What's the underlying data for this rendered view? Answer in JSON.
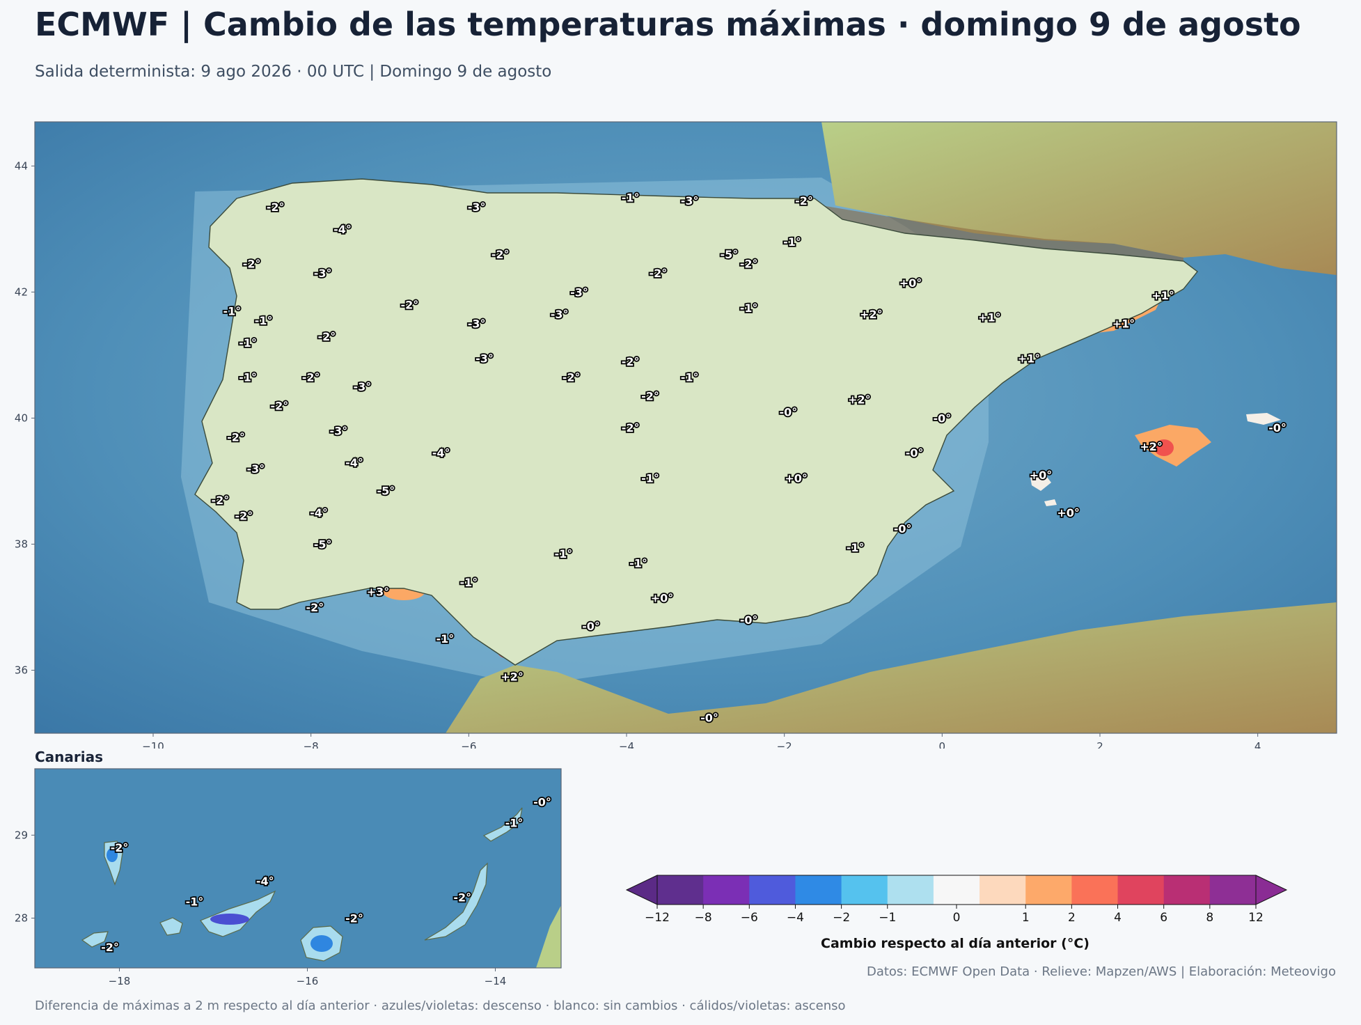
{
  "header": {
    "title": "ECMWF | Cambio de las temperaturas máximas · domingo 9 de agosto",
    "subtitle": "Salida determinista: 9 ago 2026 · 00 UTC  |  Domingo 9 de agosto"
  },
  "main_map": {
    "x_ticks": [
      "−10",
      "−8",
      "−6",
      "−4",
      "−2",
      "0",
      "2",
      "4"
    ],
    "y_ticks": [
      "44",
      "42",
      "40",
      "38",
      "36"
    ],
    "labels": [
      {
        "text": "-2°",
        "lon": -8.45,
        "lat": 43.35
      },
      {
        "text": "-4°",
        "lon": -7.6,
        "lat": 43.0
      },
      {
        "text": "-3°",
        "lon": -5.9,
        "lat": 43.35
      },
      {
        "text": "-1°",
        "lon": -3.95,
        "lat": 43.5
      },
      {
        "text": "-3°",
        "lon": -3.2,
        "lat": 43.45
      },
      {
        "text": "-2°",
        "lon": -1.75,
        "lat": 43.45
      },
      {
        "text": "-1°",
        "lon": -1.9,
        "lat": 42.8
      },
      {
        "text": "-5°",
        "lon": -2.7,
        "lat": 42.6
      },
      {
        "text": "-2°",
        "lon": -2.45,
        "lat": 42.45
      },
      {
        "text": "-2°",
        "lon": -5.6,
        "lat": 42.6
      },
      {
        "text": "-2°",
        "lon": -8.75,
        "lat": 42.45
      },
      {
        "text": "-3°",
        "lon": -7.85,
        "lat": 42.3
      },
      {
        "text": "-2°",
        "lon": -3.6,
        "lat": 42.3
      },
      {
        "text": "-3°",
        "lon": -4.6,
        "lat": 42.0
      },
      {
        "text": "-2°",
        "lon": -6.75,
        "lat": 41.8
      },
      {
        "text": "-3°",
        "lon": -4.85,
        "lat": 41.65
      },
      {
        "text": "-3°",
        "lon": -5.9,
        "lat": 41.5
      },
      {
        "text": "-1°",
        "lon": -2.45,
        "lat": 41.75
      },
      {
        "text": "+0°",
        "lon": -0.4,
        "lat": 42.15
      },
      {
        "text": "+2°",
        "lon": -0.9,
        "lat": 41.65
      },
      {
        "text": "+1°",
        "lon": 0.6,
        "lat": 41.6
      },
      {
        "text": "+1°",
        "lon": 2.8,
        "lat": 41.95
      },
      {
        "text": "+1°",
        "lon": 2.3,
        "lat": 41.5
      },
      {
        "text": "+1°",
        "lon": 1.1,
        "lat": 40.95
      },
      {
        "text": "-1°",
        "lon": -9.0,
        "lat": 41.7
      },
      {
        "text": "-1°",
        "lon": -8.6,
        "lat": 41.55
      },
      {
        "text": "-2°",
        "lon": -7.8,
        "lat": 41.3
      },
      {
        "text": "-1°",
        "lon": -8.8,
        "lat": 41.2
      },
      {
        "text": "-3°",
        "lon": -5.8,
        "lat": 40.95
      },
      {
        "text": "-2°",
        "lon": -3.95,
        "lat": 40.9
      },
      {
        "text": "-1°",
        "lon": -8.8,
        "lat": 40.65
      },
      {
        "text": "-2°",
        "lon": -8.0,
        "lat": 40.65
      },
      {
        "text": "-3°",
        "lon": -7.35,
        "lat": 40.5
      },
      {
        "text": "-2°",
        "lon": -4.7,
        "lat": 40.65
      },
      {
        "text": "-1°",
        "lon": -3.2,
        "lat": 40.65
      },
      {
        "text": "-2°",
        "lon": -3.7,
        "lat": 40.35
      },
      {
        "text": "+2°",
        "lon": -1.05,
        "lat": 40.3
      },
      {
        "text": "-2°",
        "lon": -8.4,
        "lat": 40.2
      },
      {
        "text": "-0°",
        "lon": -1.95,
        "lat": 40.1
      },
      {
        "text": "-0°",
        "lon": 0.0,
        "lat": 40.0
      },
      {
        "text": "-3°",
        "lon": -7.65,
        "lat": 39.8
      },
      {
        "text": "-2°",
        "lon": -3.95,
        "lat": 39.85
      },
      {
        "text": "-2°",
        "lon": -8.95,
        "lat": 39.7
      },
      {
        "text": "-4°",
        "lon": -6.35,
        "lat": 39.45
      },
      {
        "text": "-0°",
        "lon": -0.35,
        "lat": 39.45
      },
      {
        "text": "-4°",
        "lon": -7.45,
        "lat": 39.3
      },
      {
        "text": "-3°",
        "lon": -8.7,
        "lat": 39.2
      },
      {
        "text": "+2°",
        "lon": 2.65,
        "lat": 39.55
      },
      {
        "text": "-0°",
        "lon": 4.25,
        "lat": 39.85
      },
      {
        "text": "-1°",
        "lon": -3.7,
        "lat": 39.05
      },
      {
        "text": "+0°",
        "lon": -1.85,
        "lat": 39.05
      },
      {
        "text": "+0°",
        "lon": 1.25,
        "lat": 39.1
      },
      {
        "text": "-5°",
        "lon": -7.05,
        "lat": 38.85
      },
      {
        "text": "-2°",
        "lon": -9.15,
        "lat": 38.7
      },
      {
        "text": "-4°",
        "lon": -7.9,
        "lat": 38.5
      },
      {
        "text": "-2°",
        "lon": -8.85,
        "lat": 38.45
      },
      {
        "text": "+0°",
        "lon": 1.6,
        "lat": 38.5
      },
      {
        "text": "-0°",
        "lon": -0.5,
        "lat": 38.25
      },
      {
        "text": "-5°",
        "lon": -7.85,
        "lat": 38.0
      },
      {
        "text": "-1°",
        "lon": -4.8,
        "lat": 37.85
      },
      {
        "text": "-1°",
        "lon": -3.85,
        "lat": 37.7
      },
      {
        "text": "-1°",
        "lon": -1.1,
        "lat": 37.95
      },
      {
        "text": "-1°",
        "lon": -6.0,
        "lat": 37.4
      },
      {
        "text": "+3°",
        "lon": -7.15,
        "lat": 37.25
      },
      {
        "text": "+0°",
        "lon": -3.55,
        "lat": 37.15
      },
      {
        "text": "-2°",
        "lon": -7.95,
        "lat": 37.0
      },
      {
        "text": "-0°",
        "lon": -4.45,
        "lat": 36.7
      },
      {
        "text": "-0°",
        "lon": -2.45,
        "lat": 36.8
      },
      {
        "text": "-1°",
        "lon": -6.3,
        "lat": 36.5
      },
      {
        "text": "+2°",
        "lon": -5.45,
        "lat": 35.9
      },
      {
        "text": "-0°",
        "lon": -2.95,
        "lat": 35.25
      }
    ]
  },
  "inset": {
    "title": "Canarias",
    "x_ticks": [
      "−18",
      "−16",
      "−14"
    ],
    "y_ticks": [
      "29",
      "28"
    ],
    "labels": [
      {
        "text": "-2°",
        "lon": -18.0,
        "lat": 28.85
      },
      {
        "text": "-1°",
        "lon": -17.2,
        "lat": 28.2
      },
      {
        "text": "-4°",
        "lon": -16.45,
        "lat": 28.45
      },
      {
        "text": "-2°",
        "lon": -15.5,
        "lat": 28.0
      },
      {
        "text": "-2°",
        "lon": -14.35,
        "lat": 28.25
      },
      {
        "text": "-1°",
        "lon": -13.8,
        "lat": 29.15
      },
      {
        "text": "-0°",
        "lon": -13.5,
        "lat": 29.4
      },
      {
        "text": "-2°",
        "lon": -18.1,
        "lat": 27.65
      }
    ]
  },
  "colorbar": {
    "title": "Cambio respecto al día anterior (°C)",
    "ticks": [
      "−12",
      "−8",
      "−6",
      "−4",
      "−2",
      "−1",
      "0",
      "1",
      "2",
      "4",
      "6",
      "8",
      "12"
    ],
    "colors": [
      "#5f2f8e",
      "#7b2fb5",
      "#4f5bdc",
      "#2f8ae5",
      "#55c2ee",
      "#aee0ef",
      "#f7f7f7",
      "#fdd9bd",
      "#fda96a",
      "#fa7258",
      "#e0445e",
      "#b92f74",
      "#8e2f95"
    ],
    "under_color": "#5b2a86",
    "over_color": "#8a2c94"
  },
  "credits": "Datos: ECMWF Open Data · Relieve: Mapzen/AWS  |  Elaboración: Meteovigo",
  "footer": "Diferencia de máximas a 2 m respecto al día anterior · azules/violetas: descenso · blanco: sin cambios · cálidos/violetas: ascenso"
}
